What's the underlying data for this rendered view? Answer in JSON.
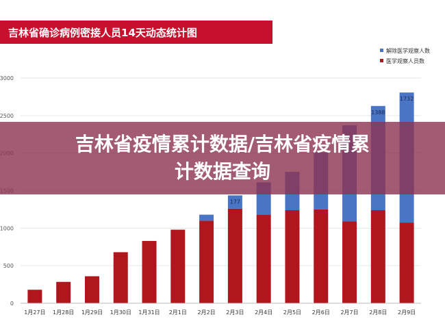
{
  "chart_data": {
    "type": "bar",
    "stacked": true,
    "title": "吉林省确诊病例密接人员14天动态统计图",
    "categories": [
      "1月27日",
      "1月28日",
      "1月29日",
      "1月30日",
      "1月31日",
      "2月1日",
      "2月2日",
      "2月3日",
      "2月4日",
      "2月5日",
      "2月6日",
      "2月7日",
      "2月8日",
      "2月9日"
    ],
    "series": [
      {
        "name": "医学观察人员数",
        "color": "#b0161d",
        "values": [
          180,
          285,
          360,
          680,
          830,
          980,
          1100,
          1260,
          1180,
          1240,
          1250,
          1090,
          1240,
          1075
        ]
      },
      {
        "name": "解除医学观察人数",
        "color": "#4a74c4",
        "values": [
          0,
          0,
          0,
          0,
          0,
          0,
          80,
          177,
          430,
          510,
          760,
          1280,
          1388,
          1732
        ]
      }
    ],
    "data_labels": {
      "解除医学观察人数": [
        null,
        null,
        null,
        null,
        null,
        null,
        null,
        "177",
        null,
        null,
        null,
        null,
        "1388",
        "1732"
      ]
    },
    "yticks": [
      0,
      500,
      1000,
      1500,
      2000,
      2500,
      3000
    ],
    "ylim": [
      0,
      3000
    ],
    "grid": true,
    "legend_position": "top-right"
  },
  "overlay": {
    "line1": "吉林省疫情累计数据/吉林省疫情累",
    "line2": "计数据查询"
  },
  "colors": {
    "title_band": "#c8102e",
    "overlay_band": "#8c3250"
  }
}
